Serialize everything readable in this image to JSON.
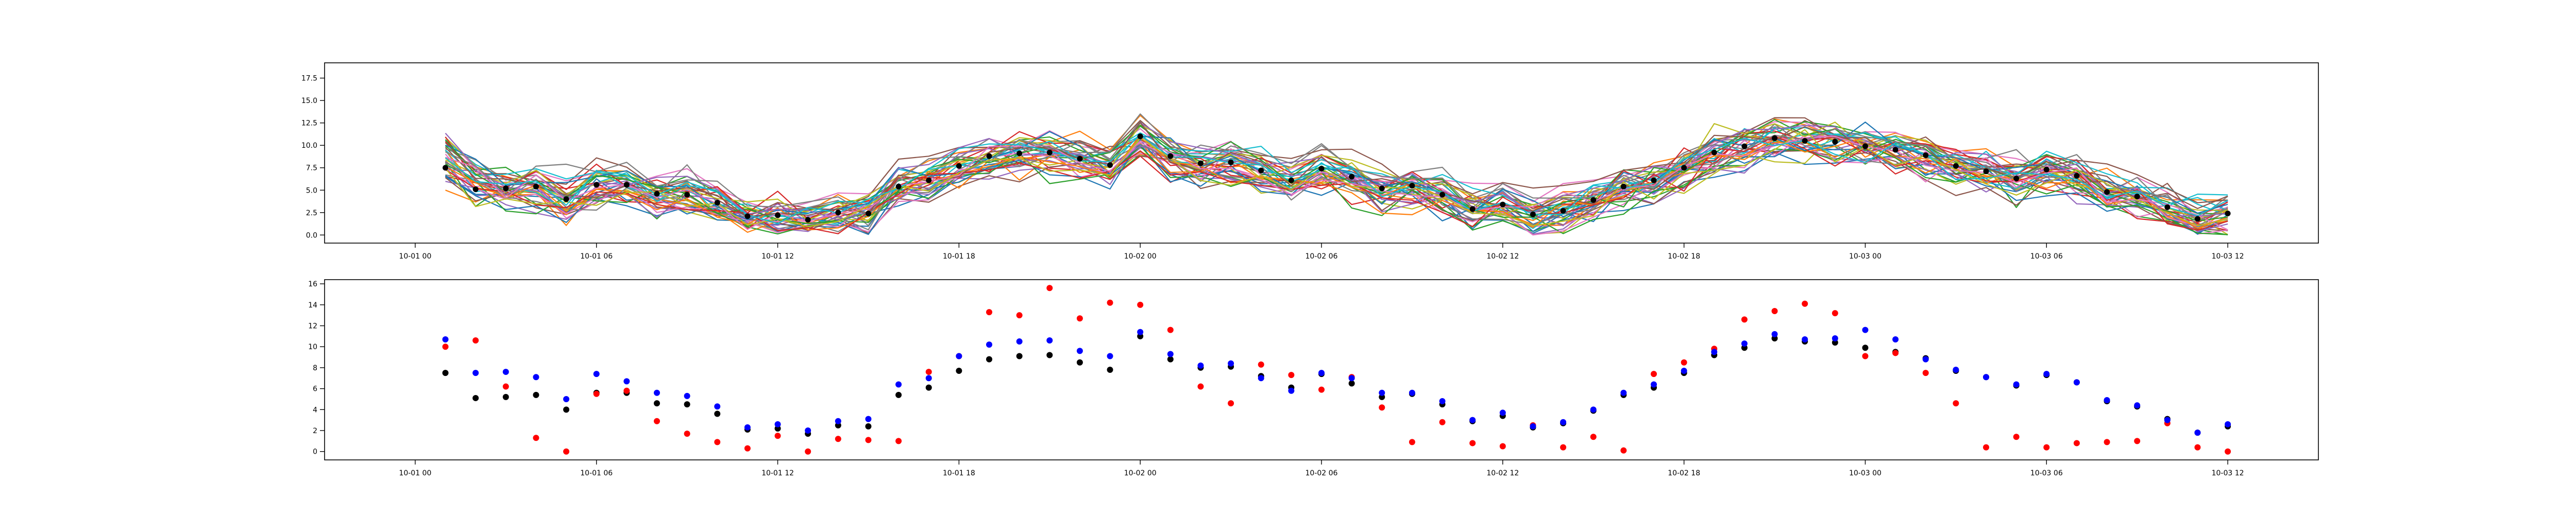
{
  "chart_data": [
    {
      "type": "line",
      "title": "",
      "xlabel": "",
      "ylabel": "",
      "x_range": [
        "2023-10-01 00:00",
        "2023-10-03 12:00"
      ],
      "x_limits": [
        "2023-09-30 21:00",
        "2023-10-03 15:00"
      ],
      "x_ticks": [
        "10-01 00",
        "10-01 06",
        "10-01 12",
        "10-01 18",
        "10-02 00",
        "10-02 06",
        "10-02 12",
        "10-02 18",
        "10-03 00",
        "10-03 06",
        "10-03 12"
      ],
      "y_ticks": [
        "0.0",
        "2.5",
        "5.0",
        "7.5",
        "10.0",
        "12.5",
        "15.0",
        "17.5"
      ],
      "ylim": [
        -0.9,
        19.2
      ],
      "grid": false,
      "ensemble_members": 40,
      "ensemble_palette": [
        "#1f77b4",
        "#ff7f0e",
        "#2ca02c",
        "#d62728",
        "#9467bd",
        "#8c564b",
        "#e377c2",
        "#7f7f7f",
        "#bcbd22",
        "#17becf"
      ],
      "observed_points": {
        "color": "#000000",
        "x": [
          "2023-10-01 01:00",
          "2023-10-01 02:00",
          "2023-10-01 03:00",
          "2023-10-01 04:00",
          "2023-10-01 05:00",
          "2023-10-01 06:00",
          "2023-10-01 07:00",
          "2023-10-01 08:00",
          "2023-10-01 09:00",
          "2023-10-01 10:00",
          "2023-10-01 11:00",
          "2023-10-01 12:00",
          "2023-10-01 13:00",
          "2023-10-01 14:00",
          "2023-10-01 15:00",
          "2023-10-01 16:00",
          "2023-10-01 17:00",
          "2023-10-01 18:00",
          "2023-10-01 19:00",
          "2023-10-01 20:00",
          "2023-10-01 21:00",
          "2023-10-01 22:00",
          "2023-10-01 23:00",
          "2023-10-02 00:00",
          "2023-10-02 01:00",
          "2023-10-02 02:00",
          "2023-10-02 03:00",
          "2023-10-02 04:00",
          "2023-10-02 05:00",
          "2023-10-02 06:00",
          "2023-10-02 07:00",
          "2023-10-02 08:00",
          "2023-10-02 09:00",
          "2023-10-02 10:00",
          "2023-10-02 11:00",
          "2023-10-02 12:00",
          "2023-10-02 13:00",
          "2023-10-02 14:00",
          "2023-10-02 15:00",
          "2023-10-02 16:00",
          "2023-10-02 17:00",
          "2023-10-02 18:00",
          "2023-10-02 19:00",
          "2023-10-02 20:00",
          "2023-10-02 21:00",
          "2023-10-02 22:00",
          "2023-10-02 23:00",
          "2023-10-03 00:00",
          "2023-10-03 01:00",
          "2023-10-03 02:00",
          "2023-10-03 03:00",
          "2023-10-03 04:00",
          "2023-10-03 05:00",
          "2023-10-03 06:00",
          "2023-10-03 07:00",
          "2023-10-03 08:00",
          "2023-10-03 09:00",
          "2023-10-03 10:00",
          "2023-10-03 11:00",
          "2023-10-03 12:00"
        ],
        "y": [
          7.5,
          5.1,
          5.2,
          5.4,
          4.0,
          5.6,
          5.6,
          4.6,
          4.5,
          3.6,
          2.1,
          2.2,
          1.7,
          2.5,
          2.4,
          5.4,
          6.1,
          7.7,
          8.8,
          9.1,
          9.2,
          8.5,
          7.8,
          11.0,
          8.8,
          8.0,
          8.1,
          7.2,
          6.1,
          7.4,
          6.5,
          5.2,
          5.5,
          4.5,
          2.9,
          3.4,
          2.3,
          2.7,
          3.9,
          5.4,
          6.1,
          7.5,
          9.2,
          9.9,
          10.8,
          10.5,
          10.4,
          9.9,
          9.5,
          8.9,
          7.7,
          7.1,
          6.3,
          7.3,
          6.6,
          4.8,
          4.3,
          3.1,
          1.8,
          2.4
        ]
      }
    },
    {
      "type": "scatter",
      "title": "",
      "xlabel": "",
      "ylabel": "",
      "x_ticks": [
        "10-01 00",
        "10-01 06",
        "10-01 12",
        "10-01 18",
        "10-02 00",
        "10-02 06",
        "10-02 12",
        "10-02 18",
        "10-03 00",
        "10-03 06",
        "10-03 12"
      ],
      "y_ticks": [
        "0",
        "2",
        "4",
        "6",
        "8",
        "10",
        "12",
        "14",
        "16"
      ],
      "ylim": [
        -0.8,
        16.4
      ],
      "grid": false,
      "x": [
        "2023-10-01 01:00",
        "2023-10-01 02:00",
        "2023-10-01 03:00",
        "2023-10-01 04:00",
        "2023-10-01 05:00",
        "2023-10-01 06:00",
        "2023-10-01 07:00",
        "2023-10-01 08:00",
        "2023-10-01 09:00",
        "2023-10-01 10:00",
        "2023-10-01 11:00",
        "2023-10-01 12:00",
        "2023-10-01 13:00",
        "2023-10-01 14:00",
        "2023-10-01 15:00",
        "2023-10-01 16:00",
        "2023-10-01 17:00",
        "2023-10-01 18:00",
        "2023-10-01 19:00",
        "2023-10-01 20:00",
        "2023-10-01 21:00",
        "2023-10-01 22:00",
        "2023-10-01 23:00",
        "2023-10-02 00:00",
        "2023-10-02 01:00",
        "2023-10-02 02:00",
        "2023-10-02 03:00",
        "2023-10-02 04:00",
        "2023-10-02 05:00",
        "2023-10-02 06:00",
        "2023-10-02 07:00",
        "2023-10-02 08:00",
        "2023-10-02 09:00",
        "2023-10-02 10:00",
        "2023-10-02 11:00",
        "2023-10-02 12:00",
        "2023-10-02 13:00",
        "2023-10-02 14:00",
        "2023-10-02 15:00",
        "2023-10-02 16:00",
        "2023-10-02 17:00",
        "2023-10-02 18:00",
        "2023-10-02 19:00",
        "2023-10-02 20:00",
        "2023-10-02 21:00",
        "2023-10-02 22:00",
        "2023-10-02 23:00",
        "2023-10-03 00:00",
        "2023-10-03 01:00",
        "2023-10-03 02:00",
        "2023-10-03 03:00",
        "2023-10-03 04:00",
        "2023-10-03 05:00",
        "2023-10-03 06:00",
        "2023-10-03 07:00",
        "2023-10-03 08:00",
        "2023-10-03 09:00",
        "2023-10-03 10:00",
        "2023-10-03 11:00",
        "2023-10-03 12:00"
      ],
      "series": [
        {
          "color": "#ff0000",
          "values": [
            10.0,
            10.6,
            6.2,
            1.3,
            0.0,
            5.5,
            5.8,
            2.9,
            1.7,
            0.9,
            0.3,
            1.5,
            0.0,
            1.2,
            1.1,
            1.0,
            7.6,
            9.1,
            13.3,
            13.0,
            15.6,
            12.7,
            14.2,
            14.0,
            11.6,
            6.2,
            4.6,
            8.3,
            7.3,
            5.9,
            7.1,
            4.2,
            0.9,
            2.8,
            0.8,
            0.5,
            2.5,
            0.4,
            1.4,
            0.1,
            7.4,
            8.5,
            9.8,
            12.6,
            13.4,
            14.1,
            13.2,
            9.1,
            9.4,
            7.5,
            4.6,
            0.4,
            1.4,
            0.4,
            0.8,
            0.9,
            1.0,
            2.7,
            0.4,
            0.0
          ]
        },
        {
          "color": "#0000ff",
          "values": [
            10.7,
            7.5,
            7.6,
            7.1,
            5.0,
            7.4,
            6.7,
            5.6,
            5.3,
            4.3,
            2.3,
            2.6,
            2.0,
            2.9,
            3.1,
            6.4,
            7.0,
            9.1,
            10.2,
            10.5,
            10.6,
            9.6,
            9.1,
            11.4,
            9.3,
            8.2,
            8.4,
            7.0,
            5.8,
            7.5,
            7.0,
            5.6,
            5.6,
            4.8,
            3.0,
            3.7,
            2.4,
            2.8,
            4.0,
            5.6,
            6.4,
            7.7,
            9.5,
            10.3,
            11.2,
            10.7,
            10.8,
            11.6,
            10.7,
            8.8,
            7.8,
            7.1,
            6.4,
            7.4,
            6.6,
            4.9,
            4.4,
            3.0,
            1.8,
            2.6
          ]
        }
      ]
    }
  ]
}
